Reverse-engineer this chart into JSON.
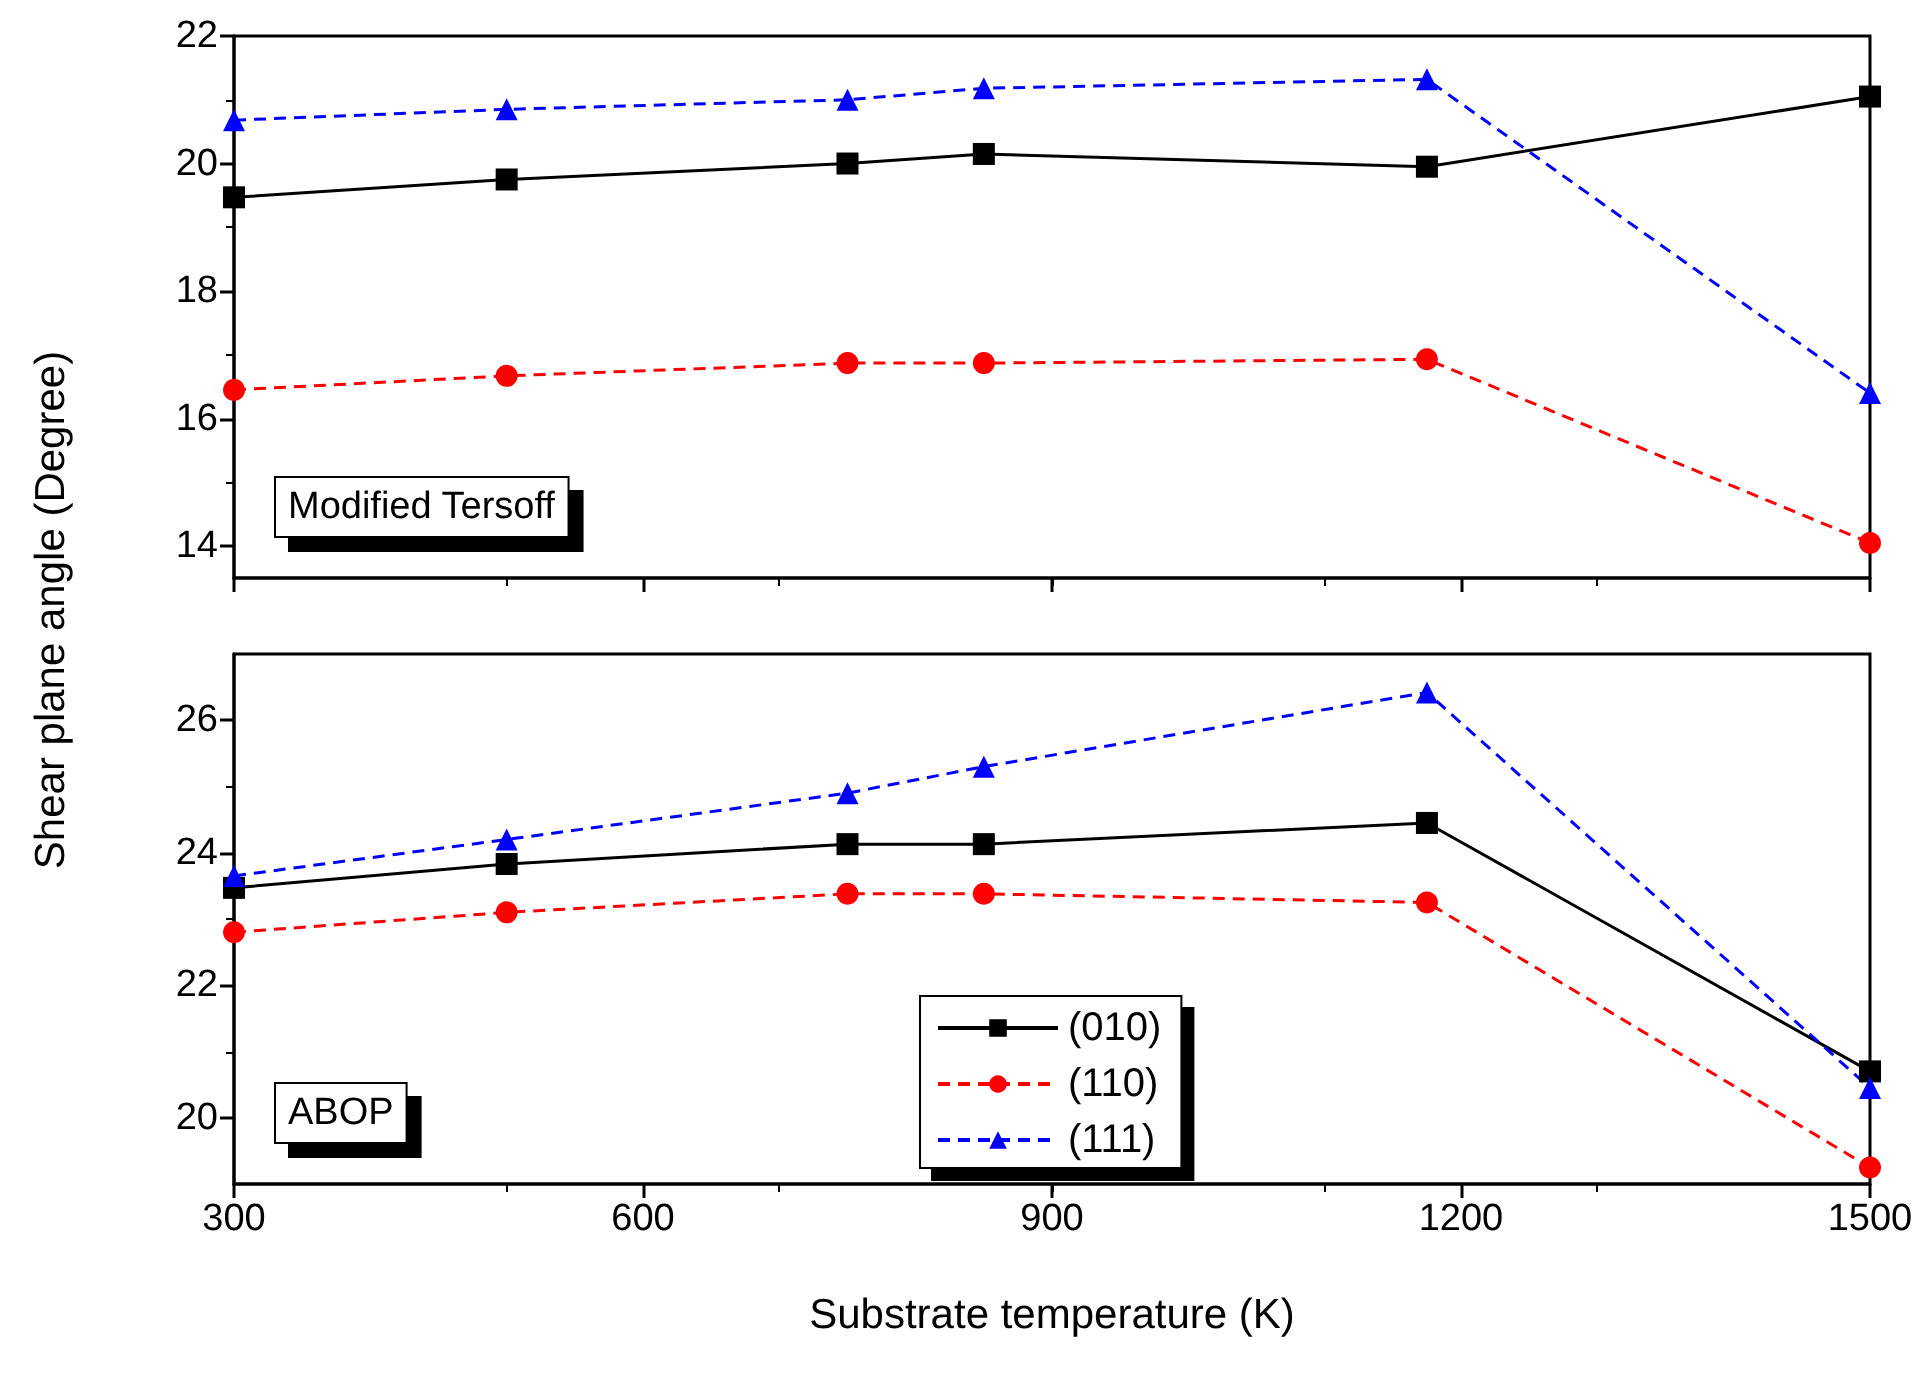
{
  "chart_data": [
    {
      "type": "line",
      "ylabel": "Shear plane angle (Degree)",
      "annotations": [
        "Modified Tersoff"
      ],
      "x": [
        300,
        500,
        750,
        850,
        1175,
        1500
      ],
      "xlim": [
        300,
        1500
      ],
      "xticks": [
        300,
        600,
        900,
        1200,
        1500
      ],
      "ylim": [
        13.5,
        22
      ],
      "yticks": [
        14,
        16,
        18,
        20,
        22
      ],
      "tick_labels": "y",
      "grid": false,
      "legend": false,
      "series": [
        {
          "color": "#000000",
          "marker": "square",
          "line_style": "solid",
          "values": [
            19.47,
            19.75,
            20.0,
            20.15,
            19.95,
            21.05
          ]
        },
        {
          "color": "#ff0000",
          "marker": "circle",
          "line_style": "dashed",
          "values": [
            16.45,
            16.67,
            16.87,
            16.87,
            16.93,
            14.05
          ]
        },
        {
          "color": "#0000ff",
          "marker": "triangle",
          "line_style": "dashed",
          "values": [
            20.68,
            20.85,
            21.0,
            21.18,
            21.32,
            16.4
          ]
        }
      ]
    },
    {
      "type": "line",
      "xlabel": "Substrate temperature (K)",
      "annotations": [
        "ABOP"
      ],
      "x": [
        300,
        500,
        750,
        850,
        1175,
        1500
      ],
      "xlim": [
        300,
        1500
      ],
      "xticks": [
        300,
        600,
        900,
        1200,
        1500
      ],
      "ylim": [
        19,
        27
      ],
      "yticks": [
        20,
        22,
        24,
        26
      ],
      "grid": false,
      "legend": "bottom",
      "series": [
        {
          "name": "(010)",
          "color": "#000000",
          "marker": "square",
          "line_style": "solid",
          "values": [
            23.47,
            23.83,
            24.13,
            24.13,
            24.45,
            20.7
          ]
        },
        {
          "name": "(110)",
          "color": "#ff0000",
          "marker": "circle",
          "line_style": "dashed",
          "values": [
            22.8,
            23.1,
            23.38,
            23.38,
            23.25,
            19.25
          ]
        },
        {
          "name": "(111)",
          "color": "#0000ff",
          "marker": "triangle",
          "line_style": "dashed",
          "values": [
            23.65,
            24.2,
            24.9,
            25.3,
            26.42,
            20.45
          ]
        }
      ]
    }
  ]
}
